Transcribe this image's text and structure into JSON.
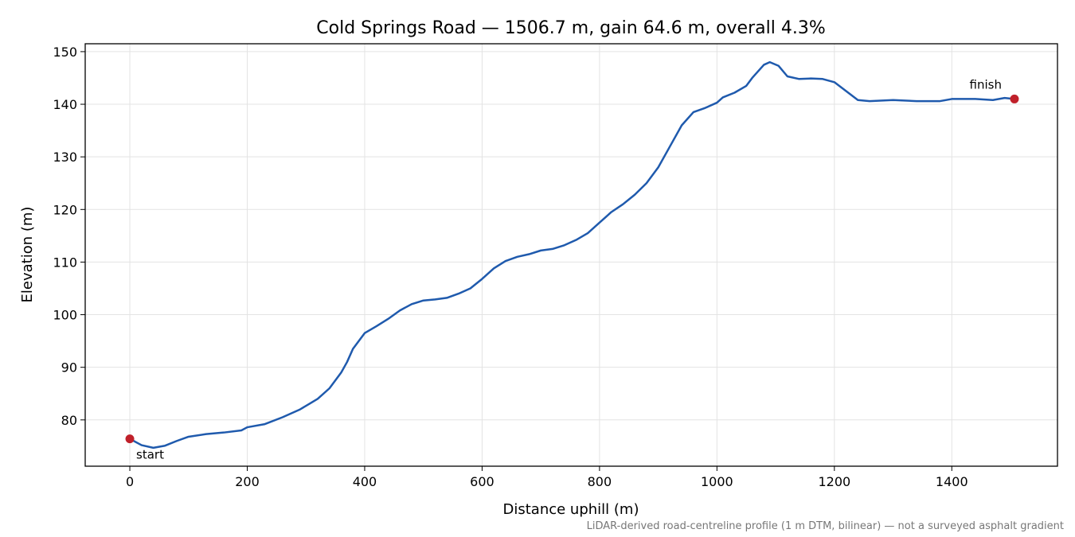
{
  "chart_data": {
    "type": "line",
    "title": "Cold Springs Road — 1506.7 m, gain 64.6 m, overall 4.3%",
    "x_label": "Distance uphill (m)",
    "y_label": "Elevation (m)",
    "footnote": "LiDAR-derived road-centreline profile (1 m DTM, bilinear) — not a surveyed asphalt gradient",
    "x": [
      0,
      20,
      40,
      60,
      80,
      100,
      130,
      160,
      190,
      200,
      230,
      260,
      290,
      320,
      340,
      360,
      370,
      380,
      400,
      420,
      440,
      460,
      480,
      500,
      520,
      540,
      560,
      580,
      600,
      620,
      640,
      660,
      680,
      700,
      720,
      740,
      760,
      780,
      800,
      820,
      840,
      860,
      880,
      900,
      920,
      940,
      960,
      980,
      1000,
      1010,
      1030,
      1050,
      1060,
      1080,
      1090,
      1105,
      1120,
      1140,
      1160,
      1180,
      1200,
      1220,
      1240,
      1260,
      1300,
      1340,
      1380,
      1400,
      1440,
      1470,
      1490,
      1506.7
    ],
    "series": [
      {
        "name": "Elevation",
        "color": "#1f5aad",
        "values": [
          76.4,
          75.2,
          74.7,
          75.1,
          76.0,
          76.8,
          77.3,
          77.6,
          78.0,
          78.6,
          79.2,
          80.5,
          82.0,
          84.0,
          86.0,
          89.0,
          91.0,
          93.5,
          96.5,
          97.8,
          99.2,
          100.8,
          102.0,
          102.7,
          102.9,
          103.2,
          104.0,
          105.0,
          106.8,
          108.8,
          110.2,
          111.0,
          111.5,
          112.2,
          112.5,
          113.2,
          114.2,
          115.5,
          117.5,
          119.5,
          121.0,
          122.8,
          125.0,
          128.0,
          132.0,
          136.0,
          138.5,
          139.3,
          140.3,
          141.3,
          142.2,
          143.5,
          145.0,
          147.5,
          148.0,
          147.3,
          145.3,
          144.8,
          144.9,
          144.8,
          144.2,
          142.5,
          140.8,
          140.6,
          140.8,
          140.6,
          140.6,
          141.0,
          141.0,
          140.8,
          141.2,
          141.0
        ]
      }
    ],
    "markers": [
      {
        "label": "start",
        "x": 0,
        "y": 76.4,
        "color": "#c0202a"
      },
      {
        "label": "finish",
        "x": 1506.7,
        "y": 141.0,
        "color": "#c0202a"
      }
    ],
    "xlim": [
      -76,
      1580
    ],
    "ylim": [
      71.2,
      151.5
    ],
    "xticks": [
      0,
      200,
      400,
      600,
      800,
      1000,
      1200,
      1400
    ],
    "yticks": [
      80,
      90,
      100,
      110,
      120,
      130,
      140,
      150
    ],
    "grid": true
  }
}
